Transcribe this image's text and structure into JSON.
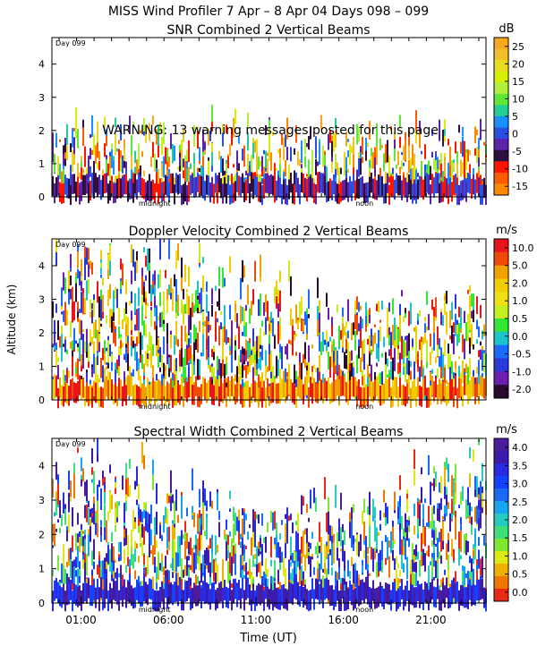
{
  "header": {
    "title": "MISS Wind Profiler    7 Apr –   8 Apr 04 Days 098 – 099",
    "warning": "WARNING: 13 warning messages posted for this page"
  },
  "chart_data": [
    {
      "type": "heatmap",
      "title": "SNR Combined 2 Vertical Beams",
      "day_label": "Day 099",
      "ylabel": "",
      "ylim": [
        0,
        4.8
      ],
      "yticks": [
        "0",
        "1",
        "2",
        "3",
        "4"
      ],
      "unit": "dB",
      "colorbar_ticks": [
        "25",
        "20",
        "15",
        "10",
        "5",
        "0",
        "-5",
        "-10",
        "-15"
      ],
      "colors": [
        "#f6a91e",
        "#f1bf2a",
        "#e8dc20",
        "#d6f000",
        "#b1f03c",
        "#5ee835",
        "#24cc96",
        "#1a90ff",
        "#2b4fe0",
        "#5a23a8",
        "#2e0f40",
        "#ff1400",
        "#ff5a00",
        "#ff8a00"
      ],
      "annotations": [
        "midnight",
        "noon"
      ]
    },
    {
      "type": "heatmap",
      "title": "Doppler Velocity Combined 2 Vertical Beams",
      "day_label": "Day 099",
      "ylabel": "Altitude (km)",
      "ylim": [
        0,
        4.8
      ],
      "yticks": [
        "0",
        "1",
        "2",
        "3",
        "4"
      ],
      "unit": "m/s",
      "colorbar_ticks": [
        "10.0",
        "5.0",
        "2.0",
        "1.0",
        "0.5",
        "0.0",
        "-0.5",
        "-1.0",
        "-2.0"
      ],
      "colors": [
        "#e8151a",
        "#f04a08",
        "#f0a000",
        "#f0cc00",
        "#eee015",
        "#c4ee20",
        "#34e634",
        "#1ac4cc",
        "#1a6aff",
        "#2a3ad6",
        "#6a1fb0",
        "#2b0a2f"
      ],
      "annotations": [
        "midnight",
        "noon"
      ]
    },
    {
      "type": "heatmap",
      "title": "Spectral Width Combined 2 Vertical Beams",
      "day_label": "Day 099",
      "ylabel": "",
      "ylim": [
        0,
        4.8
      ],
      "yticks": [
        "0",
        "1",
        "2",
        "3",
        "4"
      ],
      "unit": "m/s",
      "colorbar_ticks": [
        "4.0",
        "3.5",
        "3.0",
        "2.5",
        "2.0",
        "1.5",
        "1.0",
        "0.5",
        "0.0"
      ],
      "colors": [
        "#4a1d9e",
        "#3a1aac",
        "#2a2ae0",
        "#1840ff",
        "#1a6af6",
        "#16a4f0",
        "#22ccc0",
        "#3ee07a",
        "#7ee830",
        "#ddea12",
        "#f0b000",
        "#f07800",
        "#e82a16"
      ],
      "annotations": [
        "midnight",
        "noon"
      ]
    }
  ],
  "xaxis": {
    "label": "Time (UT)",
    "ticks": [
      "01:00",
      "06:00",
      "11:00",
      "16:00",
      "21:00"
    ],
    "midnight_label": "midnight",
    "noon_label": "noon"
  }
}
